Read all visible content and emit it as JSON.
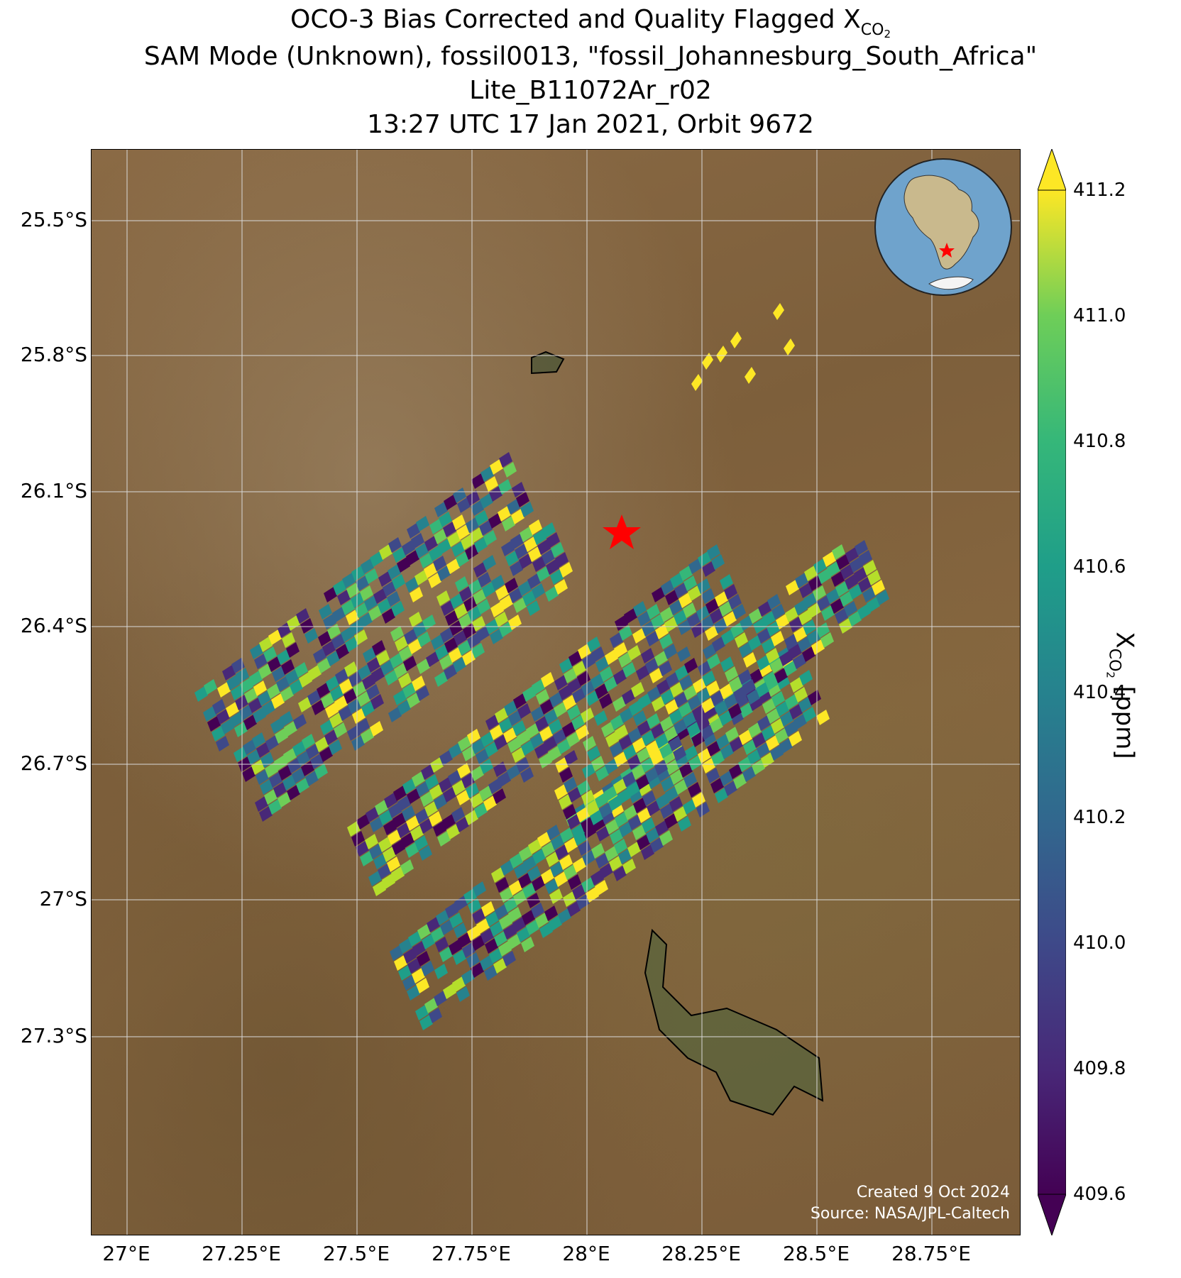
{
  "title": {
    "line1_prefix": "OCO-3 Bias Corrected and Quality Flagged X",
    "line1_sub": "CO",
    "line1_sub2": "2",
    "line2": "SAM Mode (Unknown), fossil0013, \"fossil_Johannesburg_South_Africa\"",
    "line3": "Lite_B11072Ar_r02",
    "line4": "13:27 UTC 17 Jan 2021, Orbit 9672"
  },
  "map": {
    "lat_ticks": [
      "25.5°S",
      "25.8°S",
      "26.1°S",
      "26.4°S",
      "26.7°S",
      "27°S",
      "27.3°S"
    ],
    "lon_ticks": [
      "27°E",
      "27.25°E",
      "27.5°E",
      "27.75°E",
      "28°E",
      "28.25°E",
      "28.5°E",
      "28.75°E"
    ],
    "target_marker": "red-star",
    "inset_globe": "africa-orthographic-with-red-star",
    "credit_line1": "Created 9 Oct 2024",
    "credit_line2": "Source: NASA/JPL-Caltech",
    "colors": {
      "target": "#ff0000",
      "gridline": "#d9d9d9",
      "ocean": "#6fa3cc",
      "land": "#c9b98d"
    }
  },
  "colorbar": {
    "colormap": "viridis",
    "min": 409.6,
    "max": 411.2,
    "extend": "both",
    "ticks": [
      "411.2",
      "411.0",
      "410.8",
      "410.6",
      "410.4",
      "410.2",
      "410.0",
      "409.8",
      "409.6"
    ],
    "label_prefix": "X",
    "label_sub": "CO",
    "label_sub2": "2",
    "label_suffix": " [ppm]"
  }
}
